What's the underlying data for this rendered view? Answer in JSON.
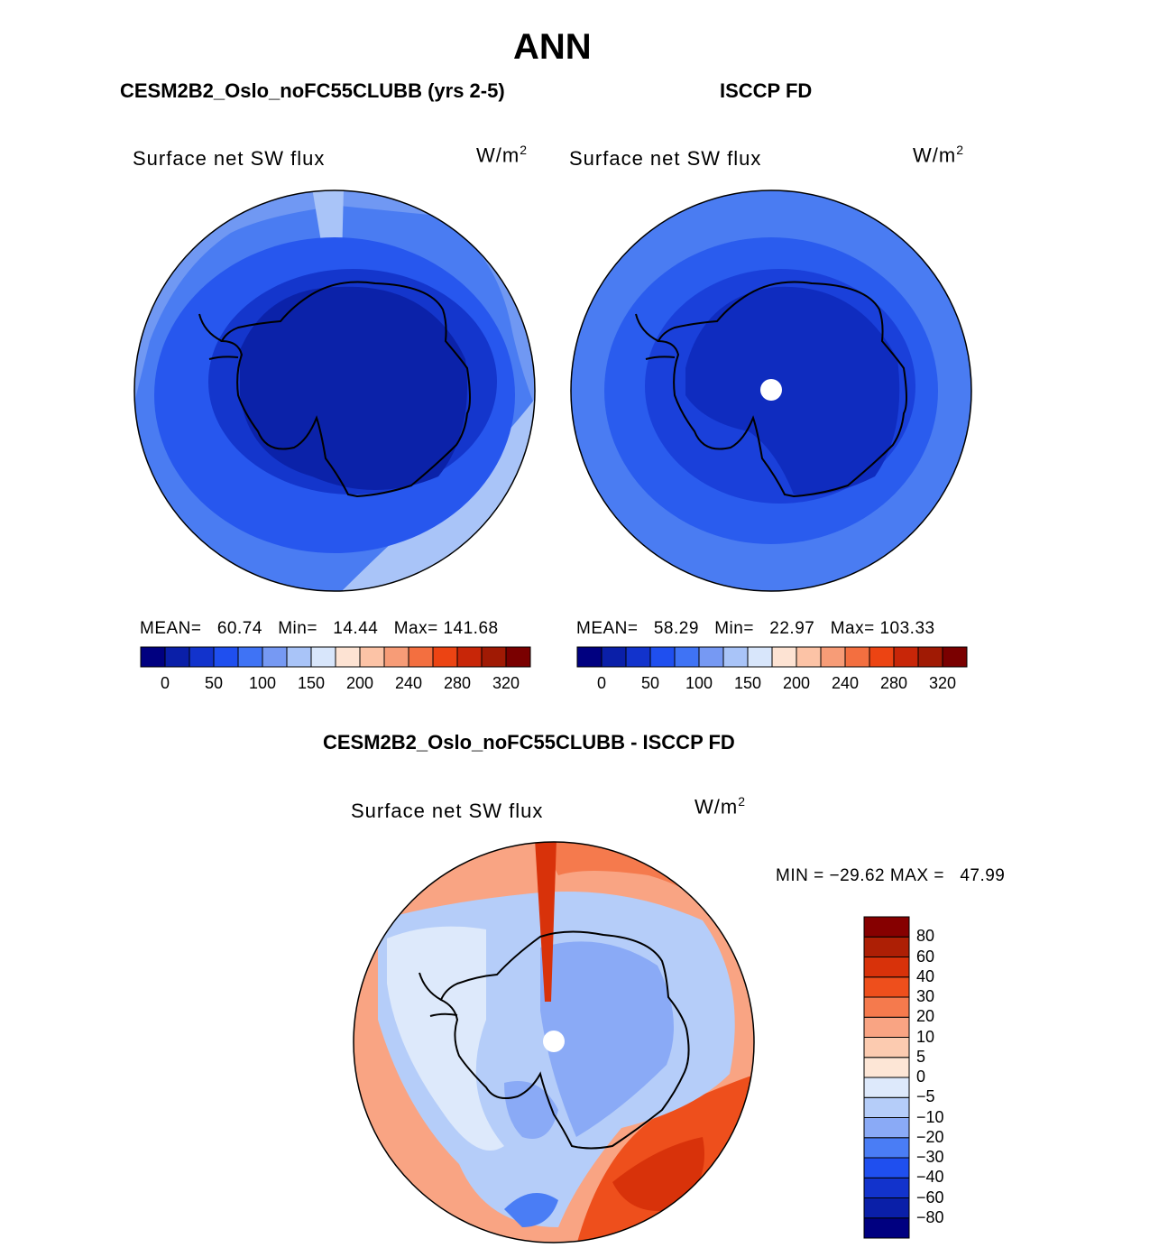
{
  "figure": {
    "title": "ANN"
  },
  "panels": {
    "model": {
      "case_title": "CESM2B2_Oslo_noFC55CLUBB (yrs 2-5)",
      "variable": "Surface net SW flux",
      "units": "W/m",
      "units_sup": "2",
      "stats": {
        "mean_label": "MEAN=",
        "mean": "60.74",
        "min_label": "Min=",
        "min": "14.44",
        "max_label": "Max=",
        "max": "141.68"
      }
    },
    "obs": {
      "case_title": "ISCCP FD",
      "variable": "Surface net SW flux",
      "units": "W/m",
      "units_sup": "2",
      "stats": {
        "mean_label": "MEAN=",
        "mean": "58.29",
        "min_label": "Min=",
        "min": "22.97",
        "max_label": "Max=",
        "max": "103.33"
      }
    },
    "diff": {
      "case_title": "CESM2B2_Oslo_noFC55CLUBB - ISCCP FD",
      "variable": "Surface net SW flux",
      "units": "W/m",
      "units_sup": "2",
      "stats": {
        "min_label": "MIN =",
        "min": "−29.62",
        "max_label": "MAX =",
        "max": "47.99"
      }
    }
  },
  "colorbar_abs": {
    "colors": [
      "#000080",
      "#0a1fa8",
      "#1233cc",
      "#1f4fef",
      "#3f73f5",
      "#7699f3",
      "#a9c4f8",
      "#d8e6fb",
      "#fde3d3",
      "#fcc3a6",
      "#f79c77",
      "#f36f40",
      "#ec4413",
      "#c82608",
      "#a01a04",
      "#7a0000"
    ],
    "tick_labels": [
      "0",
      "50",
      "100",
      "150",
      "200",
      "240",
      "280",
      "320"
    ]
  },
  "colorbar_diff": {
    "colors": [
      "#000080",
      "#0a1fa8",
      "#1233cc",
      "#1f4fef",
      "#4a7df5",
      "#8aaaf6",
      "#b5cdf9",
      "#dde9fb",
      "#fde6d6",
      "#fccbb0",
      "#f9a483",
      "#f57a4d",
      "#ee4f1c",
      "#d8320a",
      "#ad1f05",
      "#860000"
    ],
    "tick_labels": [
      "−80",
      "−60",
      "−40",
      "−30",
      "−20",
      "−10",
      "−5",
      "0",
      "5",
      "10",
      "20",
      "30",
      "40",
      "60",
      "80"
    ]
  }
}
